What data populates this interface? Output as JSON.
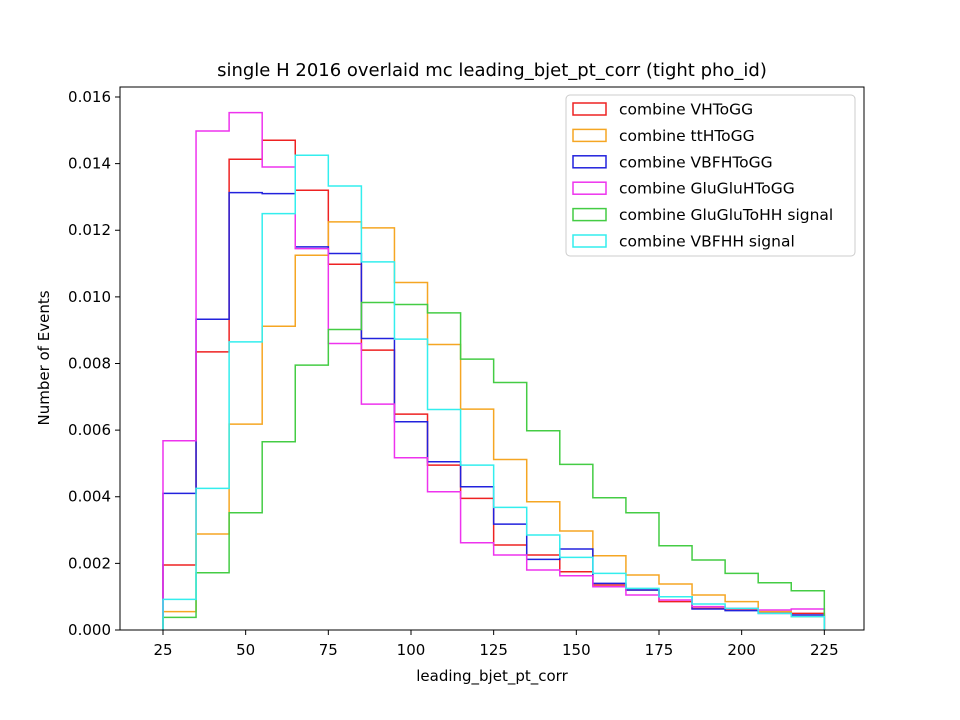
{
  "chart_data": {
    "type": "line",
    "drawstyle": "step-histogram",
    "title": "single H 2016 overlaid mc leading_bjet_pt_corr (tight pho_id)",
    "xlabel": "leading_bjet_pt_corr",
    "ylabel": "Number of Events",
    "xlim": [
      12,
      237
    ],
    "ylim": [
      0,
      0.0163
    ],
    "x_ticks": [
      25,
      50,
      75,
      100,
      125,
      150,
      175,
      200,
      225
    ],
    "y_ticks": [
      0.0,
      0.002,
      0.004,
      0.006,
      0.008,
      0.01,
      0.012,
      0.014,
      0.016
    ],
    "y_tick_labels": [
      "0.000",
      "0.002",
      "0.004",
      "0.006",
      "0.008",
      "0.010",
      "0.012",
      "0.014",
      "0.016"
    ],
    "bin_edges": [
      25,
      35,
      45,
      55,
      65,
      75,
      85,
      95,
      105,
      115,
      125,
      135,
      145,
      155,
      165,
      175,
      185,
      195,
      205,
      215,
      225
    ],
    "legend_position": "upper-right",
    "grid": false,
    "series": [
      {
        "name": "combine VHToGG",
        "color": "#ee2222",
        "values": [
          0.00195,
          0.00835,
          0.01413,
          0.0147,
          0.0132,
          0.01098,
          0.0084,
          0.00648,
          0.00495,
          0.00395,
          0.00255,
          0.00225,
          0.00175,
          0.00135,
          0.0012,
          0.00085,
          0.00065,
          0.0006,
          0.00055,
          0.0005
        ]
      },
      {
        "name": "combine ttHToGG",
        "color": "#f5a623",
        "values": [
          0.00055,
          0.00288,
          0.00618,
          0.00912,
          0.01125,
          0.01225,
          0.01207,
          0.01043,
          0.00857,
          0.00663,
          0.00512,
          0.00385,
          0.00297,
          0.00223,
          0.00165,
          0.00138,
          0.00105,
          0.00085,
          0.00055,
          0.0004
        ]
      },
      {
        "name": "combine VBFHToGG",
        "color": "#2222dd",
        "values": [
          0.0041,
          0.00933,
          0.01313,
          0.0131,
          0.0115,
          0.0113,
          0.00875,
          0.00625,
          0.00505,
          0.0043,
          0.00318,
          0.00212,
          0.00243,
          0.0014,
          0.0012,
          0.001,
          0.00063,
          0.00058,
          0.0005,
          0.00045
        ]
      },
      {
        "name": "combine GluGluHToGG",
        "color": "#ee33ee",
        "values": [
          0.00568,
          0.01498,
          0.01553,
          0.0139,
          0.01145,
          0.0086,
          0.00678,
          0.00517,
          0.00415,
          0.00262,
          0.00225,
          0.0018,
          0.00163,
          0.0013,
          0.00105,
          0.0009,
          0.0007,
          0.00065,
          0.0006,
          0.00063
        ]
      },
      {
        "name": "combine GluGluToHH signal",
        "color": "#44cc44",
        "values": [
          0.00038,
          0.00172,
          0.00352,
          0.00565,
          0.00795,
          0.00902,
          0.00983,
          0.00977,
          0.00952,
          0.00813,
          0.00743,
          0.00598,
          0.00497,
          0.00397,
          0.00352,
          0.00253,
          0.0021,
          0.0017,
          0.00142,
          0.00118
        ]
      },
      {
        "name": "combine VBFHH signal",
        "color": "#33eeee",
        "values": [
          0.00092,
          0.00425,
          0.00865,
          0.0125,
          0.01425,
          0.01333,
          0.01105,
          0.00873,
          0.00662,
          0.00495,
          0.00368,
          0.00285,
          0.00218,
          0.0017,
          0.00125,
          0.001,
          0.00078,
          0.00065,
          0.0005,
          0.0004
        ]
      }
    ]
  }
}
